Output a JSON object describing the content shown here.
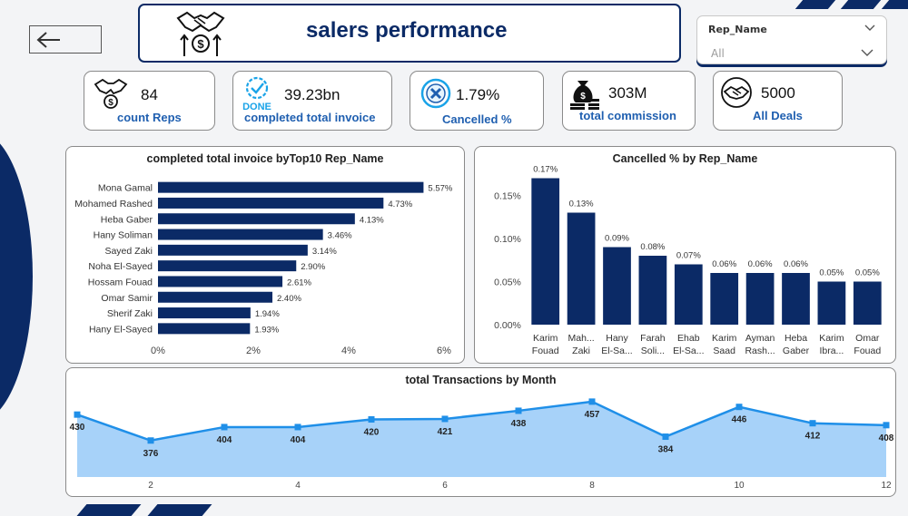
{
  "header": {
    "title": "salers performance",
    "slicer": {
      "label": "Rep_Name",
      "value": "All"
    }
  },
  "colors": {
    "navy": "#0b2a66",
    "bar": "#0f4a8a",
    "line": "#1f8fe8",
    "area": "#9dcdf8",
    "accent": "#1f5fb0"
  },
  "kpis": [
    {
      "value": "84",
      "label": "count Reps",
      "icon": "handshake-coin-icon"
    },
    {
      "value": "39.23bn",
      "label": "completed total invoice",
      "icon": "done-check-icon"
    },
    {
      "value": "1.79%",
      "label": "Cancelled %",
      "icon": "cancel-x-icon"
    },
    {
      "value": "303M",
      "label": "total commission",
      "icon": "money-bag-icon"
    },
    {
      "value": "5000",
      "label": "All Deals",
      "icon": "handshake-icon"
    }
  ],
  "chart_data": [
    {
      "type": "bar",
      "orientation": "horizontal",
      "title": "completed total invoice byTop10 Rep_Name",
      "categories": [
        "Mona Gamal",
        "Mohamed Rashed",
        "Heba Gaber",
        "Hany Soliman",
        "Sayed Zaki",
        "Noha El-Sayed",
        "Hossam Fouad",
        "Omar Samir",
        "Sherif Zaki",
        "Hany El-Sayed"
      ],
      "values": [
        5.57,
        4.73,
        4.13,
        3.46,
        3.14,
        2.9,
        2.61,
        2.4,
        1.94,
        1.93
      ],
      "data_labels": [
        "5.57%",
        "4.73%",
        "4.13%",
        "3.46%",
        "3.14%",
        "2.90%",
        "2.61%",
        "2.40%",
        "1.94%",
        "1.93%"
      ],
      "xlim": [
        0,
        6
      ],
      "xticks": [
        "0%",
        "2%",
        "4%",
        "6%"
      ]
    },
    {
      "type": "bar",
      "orientation": "vertical",
      "title": "Cancelled % by Rep_Name",
      "categories": [
        [
          "Karim",
          "Fouad"
        ],
        [
          "Mah...",
          "Zaki"
        ],
        [
          "Hany",
          "El-Sa..."
        ],
        [
          "Farah",
          "Soli..."
        ],
        [
          "Ehab",
          "El-Sa..."
        ],
        [
          "Karim",
          "Saad"
        ],
        [
          "Ayman",
          "Rash..."
        ],
        [
          "Heba",
          "Gaber"
        ],
        [
          "Karim",
          "Ibra..."
        ],
        [
          "Omar",
          "Fouad"
        ]
      ],
      "values": [
        0.17,
        0.13,
        0.09,
        0.08,
        0.07,
        0.06,
        0.06,
        0.06,
        0.05,
        0.05
      ],
      "data_labels": [
        "0.17%",
        "0.13%",
        "0.09%",
        "0.08%",
        "0.07%",
        "0.06%",
        "0.06%",
        "0.06%",
        "0.05%",
        "0.05%"
      ],
      "ylim": [
        0,
        0.18
      ],
      "yticks": [
        {
          "v": 0,
          "t": "0.00%"
        },
        {
          "v": 0.05,
          "t": "0.05%"
        },
        {
          "v": 0.1,
          "t": "0.10%"
        },
        {
          "v": 0.15,
          "t": "0.15%"
        }
      ]
    },
    {
      "type": "area",
      "title": "total Transactions by Month",
      "x": [
        1,
        2,
        3,
        4,
        5,
        6,
        7,
        8,
        9,
        10,
        11,
        12
      ],
      "values": [
        430,
        376,
        404,
        404,
        420,
        421,
        438,
        457,
        384,
        446,
        412,
        408
      ],
      "xticks": [
        2,
        4,
        6,
        8,
        10,
        12
      ],
      "ylim": [
        300,
        470
      ]
    }
  ]
}
